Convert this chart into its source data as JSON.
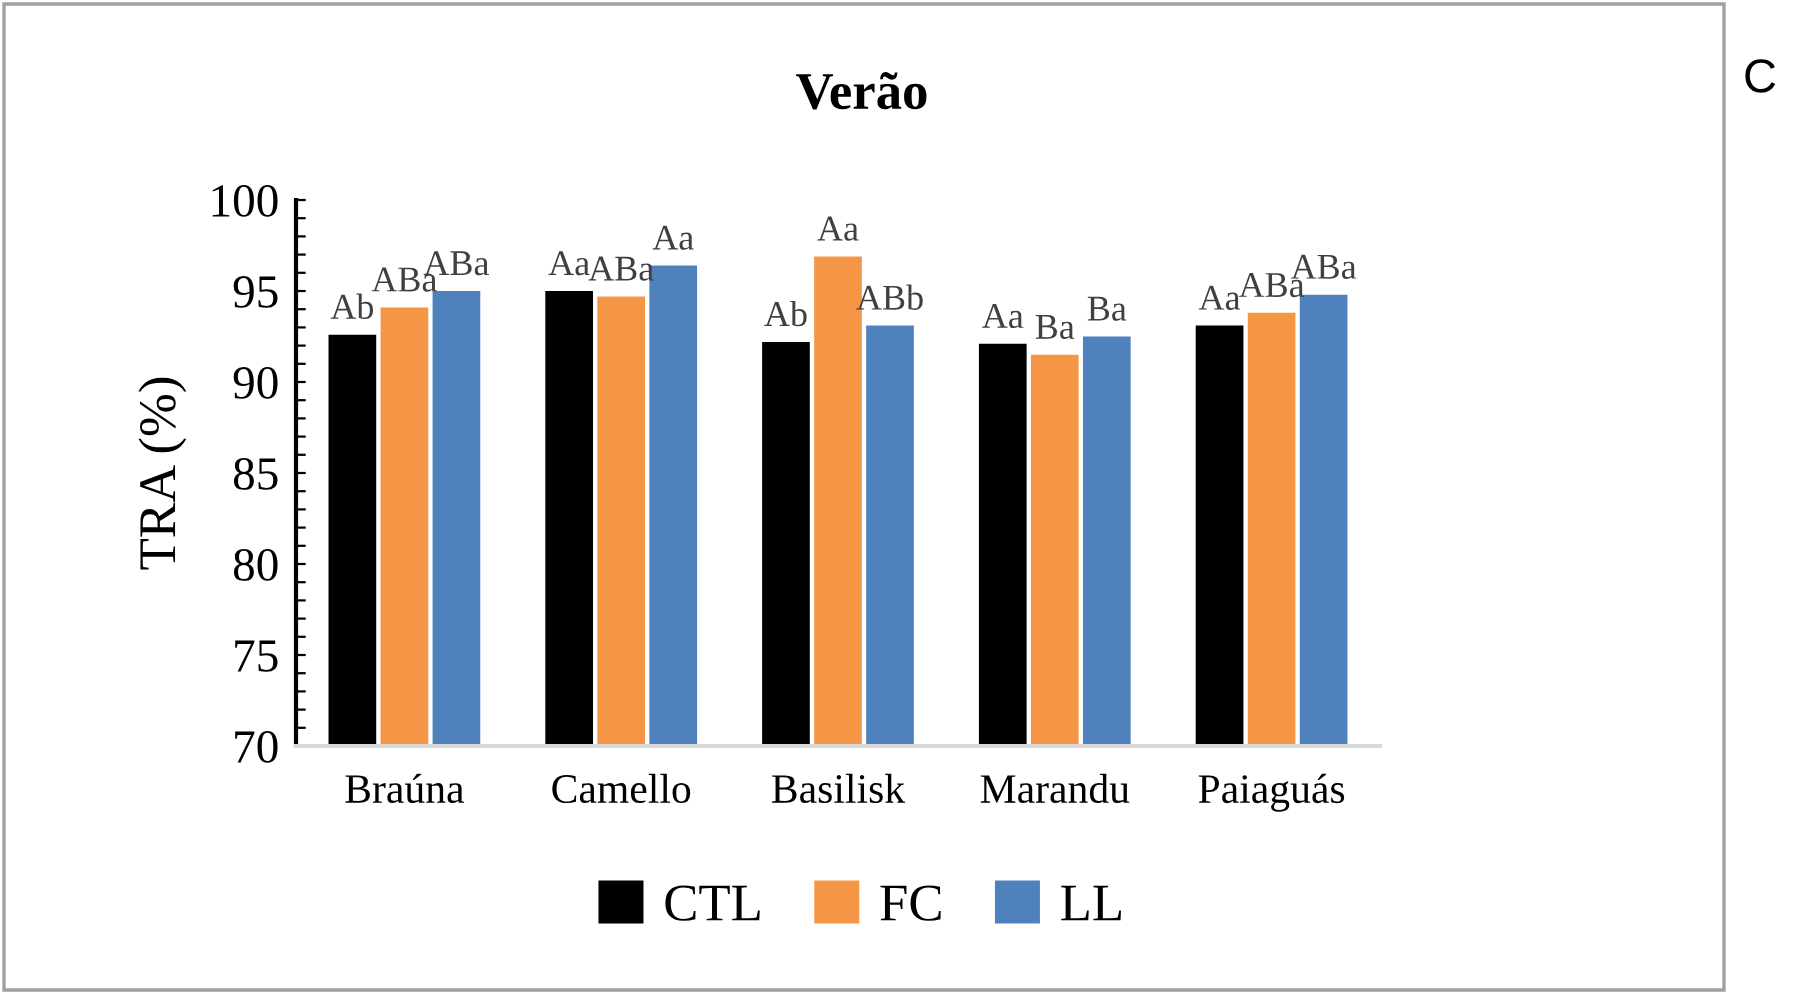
{
  "chart_data": {
    "type": "bar",
    "title": "Verão",
    "ylabel": "TRA (%)",
    "categories": [
      "Braúna",
      "Camello",
      "Basilisk",
      "Marandu",
      "Paiaguás"
    ],
    "series": [
      {
        "name": "CTL",
        "color": "#000000",
        "values": [
          92.6,
          95.0,
          92.2,
          92.1,
          93.1
        ],
        "value_labels": [
          "Ab",
          "Aa",
          "Ab",
          "Aa",
          "Aa"
        ]
      },
      {
        "name": "FC",
        "color": "#f59646",
        "values": [
          94.1,
          94.7,
          96.9,
          91.5,
          93.8
        ],
        "value_labels": [
          "ABa",
          "ABa",
          "Aa",
          "Ba",
          "ABa"
        ]
      },
      {
        "name": "LL",
        "color": "#4f81bd",
        "values": [
          95.0,
          96.4,
          93.1,
          92.5,
          94.8
        ],
        "value_labels": [
          "ABa",
          "Aa",
          "ABb",
          "Ba",
          "ABa"
        ]
      }
    ],
    "ylim": [
      70,
      100
    ],
    "yticks": [
      70,
      {
        "value": 71,
        "label": null
      },
      {
        "value": 72,
        "label": null
      },
      {
        "value": 73,
        "label": null
      },
      {
        "value": 74,
        "label": null
      },
      75,
      {
        "value": 76,
        "label": null
      },
      {
        "value": 77,
        "label": null
      },
      {
        "value": 78,
        "label": null
      },
      {
        "value": 79,
        "label": null
      },
      80,
      {
        "value": 81,
        "label": null
      },
      {
        "value": 82,
        "label": null
      },
      {
        "value": 83,
        "label": null
      },
      {
        "value": 84,
        "label": null
      },
      85,
      {
        "value": 86,
        "label": null
      },
      {
        "value": 87,
        "label": null
      },
      {
        "value": 88,
        "label": null
      },
      {
        "value": 89,
        "label": null
      },
      90,
      {
        "value": 91,
        "label": null
      },
      {
        "value": 92,
        "label": null
      },
      {
        "value": 93,
        "label": null
      },
      {
        "value": 94,
        "label": null
      },
      95,
      {
        "value": 96,
        "label": null
      },
      {
        "value": 97,
        "label": null
      },
      {
        "value": 98,
        "label": null
      },
      {
        "value": 99,
        "label": null
      },
      100
    ],
    "grid": false,
    "legend": "bottom",
    "annotations": [
      "C"
    ]
  }
}
